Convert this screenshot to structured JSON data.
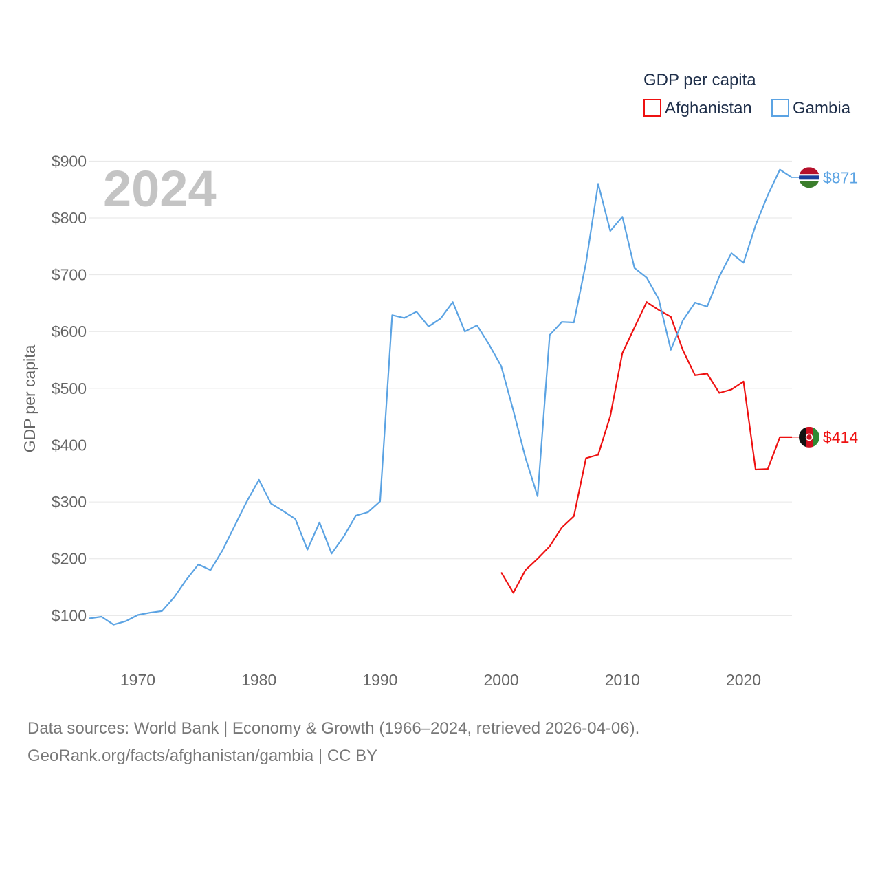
{
  "chart_data": {
    "type": "line",
    "title": "GDP per capita",
    "ylabel": "GDP per capita",
    "xlabel": "",
    "year_label": "2024",
    "xlim": [
      1966,
      2024
    ],
    "ylim": [
      0,
      900
    ],
    "x_ticks": [
      1970,
      1980,
      1990,
      2000,
      2010,
      2020
    ],
    "x_tick_labels": [
      "1970",
      "1980",
      "1990",
      "2000",
      "2010",
      "2020"
    ],
    "y_ticks": [
      100,
      200,
      300,
      400,
      500,
      600,
      700,
      800,
      900
    ],
    "y_tick_labels": [
      "$100",
      "$200",
      "$300",
      "$400",
      "$500",
      "$600",
      "$700",
      "$800",
      "$900"
    ],
    "legend": {
      "title": "GDP per capita",
      "position": "top-right"
    },
    "series": [
      {
        "name": "Afghanistan",
        "color": "#ee1111",
        "end_label": "$414",
        "flag": "afghanistan-flag",
        "x": [
          2000,
          2001,
          2002,
          2003,
          2004,
          2005,
          2006,
          2007,
          2008,
          2009,
          2010,
          2011,
          2012,
          2013,
          2014,
          2015,
          2016,
          2017,
          2018,
          2019,
          2020,
          2021,
          2022,
          2023,
          2024
        ],
        "values": [
          176,
          140,
          180,
          200,
          222,
          255,
          275,
          377,
          383,
          451,
          562,
          607,
          652,
          638,
          626,
          567,
          523,
          526,
          492,
          498,
          512,
          357,
          358,
          414,
          414
        ]
      },
      {
        "name": "Gambia",
        "color": "#5ba3e3",
        "end_label": "$871",
        "flag": "gambia-flag",
        "x": [
          1966,
          1967,
          1968,
          1969,
          1970,
          1971,
          1972,
          1973,
          1974,
          1975,
          1976,
          1977,
          1978,
          1979,
          1980,
          1981,
          1982,
          1983,
          1984,
          1985,
          1986,
          1987,
          1988,
          1989,
          1990,
          1991,
          1992,
          1993,
          1994,
          1995,
          1996,
          1997,
          1998,
          1999,
          2000,
          2001,
          2002,
          2003,
          2004,
          2005,
          2006,
          2007,
          2008,
          2009,
          2010,
          2011,
          2012,
          2013,
          2014,
          2015,
          2016,
          2017,
          2018,
          2019,
          2020,
          2021,
          2022,
          2023,
          2024
        ],
        "values": [
          95,
          98,
          84,
          90,
          101,
          105,
          108,
          132,
          163,
          190,
          180,
          215,
          258,
          301,
          339,
          297,
          284,
          270,
          216,
          264,
          209,
          239,
          276,
          282,
          301,
          629,
          624,
          635,
          609,
          623,
          652,
          600,
          611,
          577,
          539,
          461,
          378,
          310,
          594,
          617,
          616,
          721,
          860,
          777,
          802,
          712,
          695,
          657,
          568,
          620,
          651,
          644,
          697,
          738,
          721,
          787,
          840,
          885,
          871
        ]
      }
    ]
  },
  "footer": {
    "line1": "Data sources: World Bank | Economy & Growth (1966–2024, retrieved 2026-04-06).",
    "line2": "GeoRank.org/facts/afghanistan/gambia | CC BY"
  }
}
